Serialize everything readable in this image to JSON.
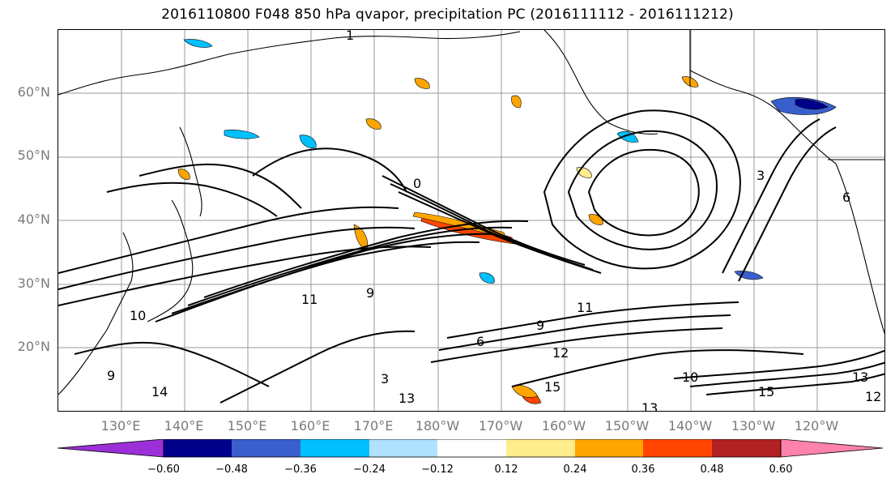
{
  "title": "2016110800 F048 850 hPa qvapor, precipitation PC (2016111112 - 2016111212)",
  "lat_labels": [
    "60°N",
    "50°N",
    "40°N",
    "30°N",
    "20°N"
  ],
  "lon_labels": [
    "130°E",
    "140°E",
    "150°E",
    "160°E",
    "170°E",
    "180°W",
    "170°W",
    "160°W",
    "150°W",
    "140°W",
    "130°W",
    "120°W"
  ],
  "colorbar": {
    "ticks": [
      "−0.60",
      "−0.48",
      "−0.36",
      "−0.24",
      "−0.12",
      "0.12",
      "0.24",
      "0.36",
      "0.48",
      "0.60"
    ],
    "colors": [
      "#9b30d9",
      "#00008b",
      "#3a5fcd",
      "#00bfff",
      "#b0e2ff",
      "#ffffff",
      "#ffec8b",
      "#ffa500",
      "#ff4500",
      "#b22222",
      "#ff82ab"
    ]
  },
  "contour_labels": [
    "1",
    "0",
    "3",
    "6",
    "9",
    "10",
    "11",
    "12",
    "13",
    "14",
    "15",
    "15",
    "13",
    "12",
    "10",
    "9",
    "9",
    "3",
    "6",
    "11",
    "13"
  ]
}
